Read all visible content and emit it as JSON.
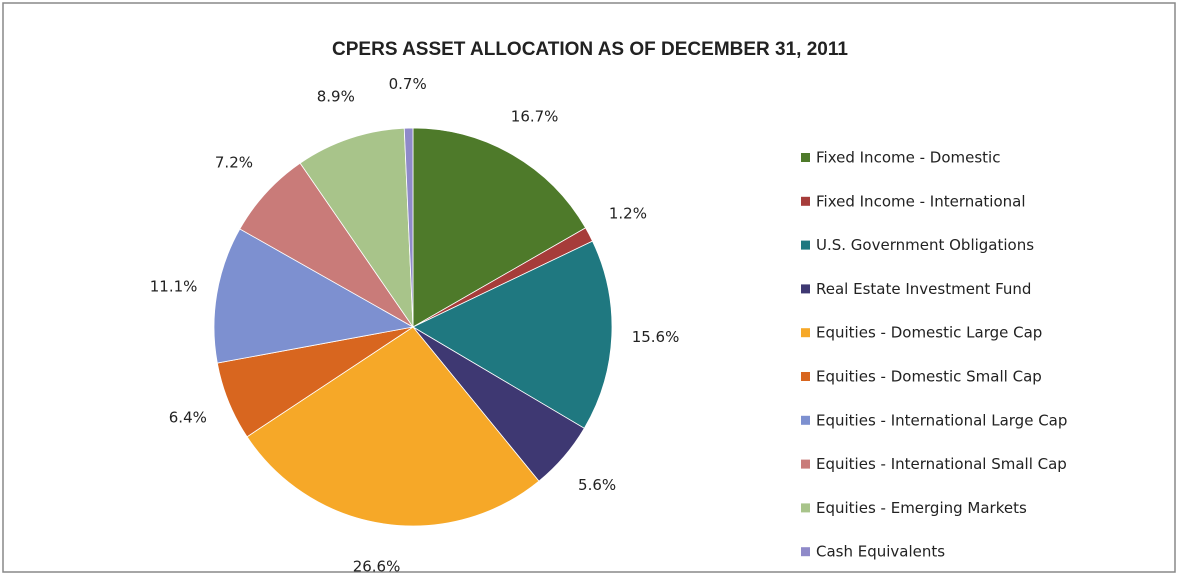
{
  "chart_data": {
    "type": "pie",
    "title": "CPERS ASSET ALLOCATION AS OF DECEMBER 31, 2011",
    "categories": [
      "Fixed Income - Domestic",
      "Fixed Income - International",
      "U.S. Government Obligations",
      "Real Estate Investment Fund",
      "Equities - Domestic Large Cap",
      "Equities - Domestic Small Cap",
      "Equities - International Large Cap",
      "Equities - International Small Cap",
      "Equities - Emerging Markets",
      "Cash Equivalents"
    ],
    "values": [
      16.7,
      1.2,
      15.6,
      5.6,
      26.6,
      6.4,
      11.1,
      7.2,
      8.9,
      0.7
    ],
    "value_labels": [
      "16.7%",
      "1.2%",
      "15.6%",
      "5.6%",
      "26.6%",
      "6.4%",
      "11.1%",
      "7.2%",
      "8.9%",
      "0.7%"
    ],
    "colors": [
      "#4e7a2a",
      "#a63c3a",
      "#1f7880",
      "#3e3872",
      "#f6a828",
      "#d8661f",
      "#7d90d0",
      "#c97b79",
      "#a8c48a",
      "#8f8ac9"
    ],
    "legend": "right"
  }
}
